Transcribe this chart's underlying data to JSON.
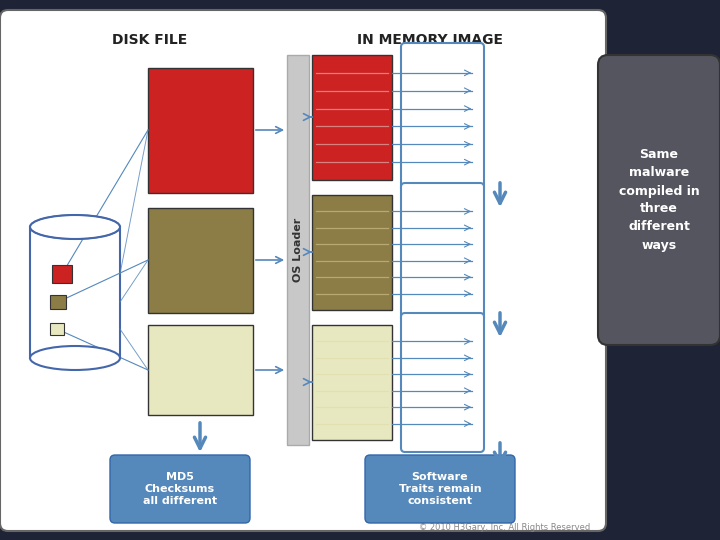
{
  "bg_color": "#1e2336",
  "main_panel_color": "#ffffff",
  "main_panel_edge": "#666666",
  "disk_file_label": "DISK FILE",
  "memory_image_label": "IN MEMORY IMAGE",
  "os_loader_label": "OS Loader",
  "block_red": "#cc2222",
  "block_tan": "#8b7d45",
  "block_yellow": "#e8e8c0",
  "cylinder_color": "#ffffff",
  "cylinder_edge": "#4466aa",
  "separator_color": "#c8c8c8",
  "separator_edge": "#aaaaaa",
  "arrow_color": "#5588bb",
  "line_color": "#5588bb",
  "md5_box_color": "#5588bb",
  "md5_text": "MD5\nChecksums\nall different",
  "software_text": "Software\nTraits remain\nconsistent",
  "side_box_color": "#555560",
  "side_box_edge": "#333333",
  "side_text": "Same\nmalware\ncompiled in\nthree\ndifferent\nways",
  "footer_text": "© 2010 H3Gary, Inc. All Rights Reserved",
  "label_color": "#222222",
  "white_text": "#ffffff",
  "title_fontsize": 10,
  "small_fontsize": 8
}
